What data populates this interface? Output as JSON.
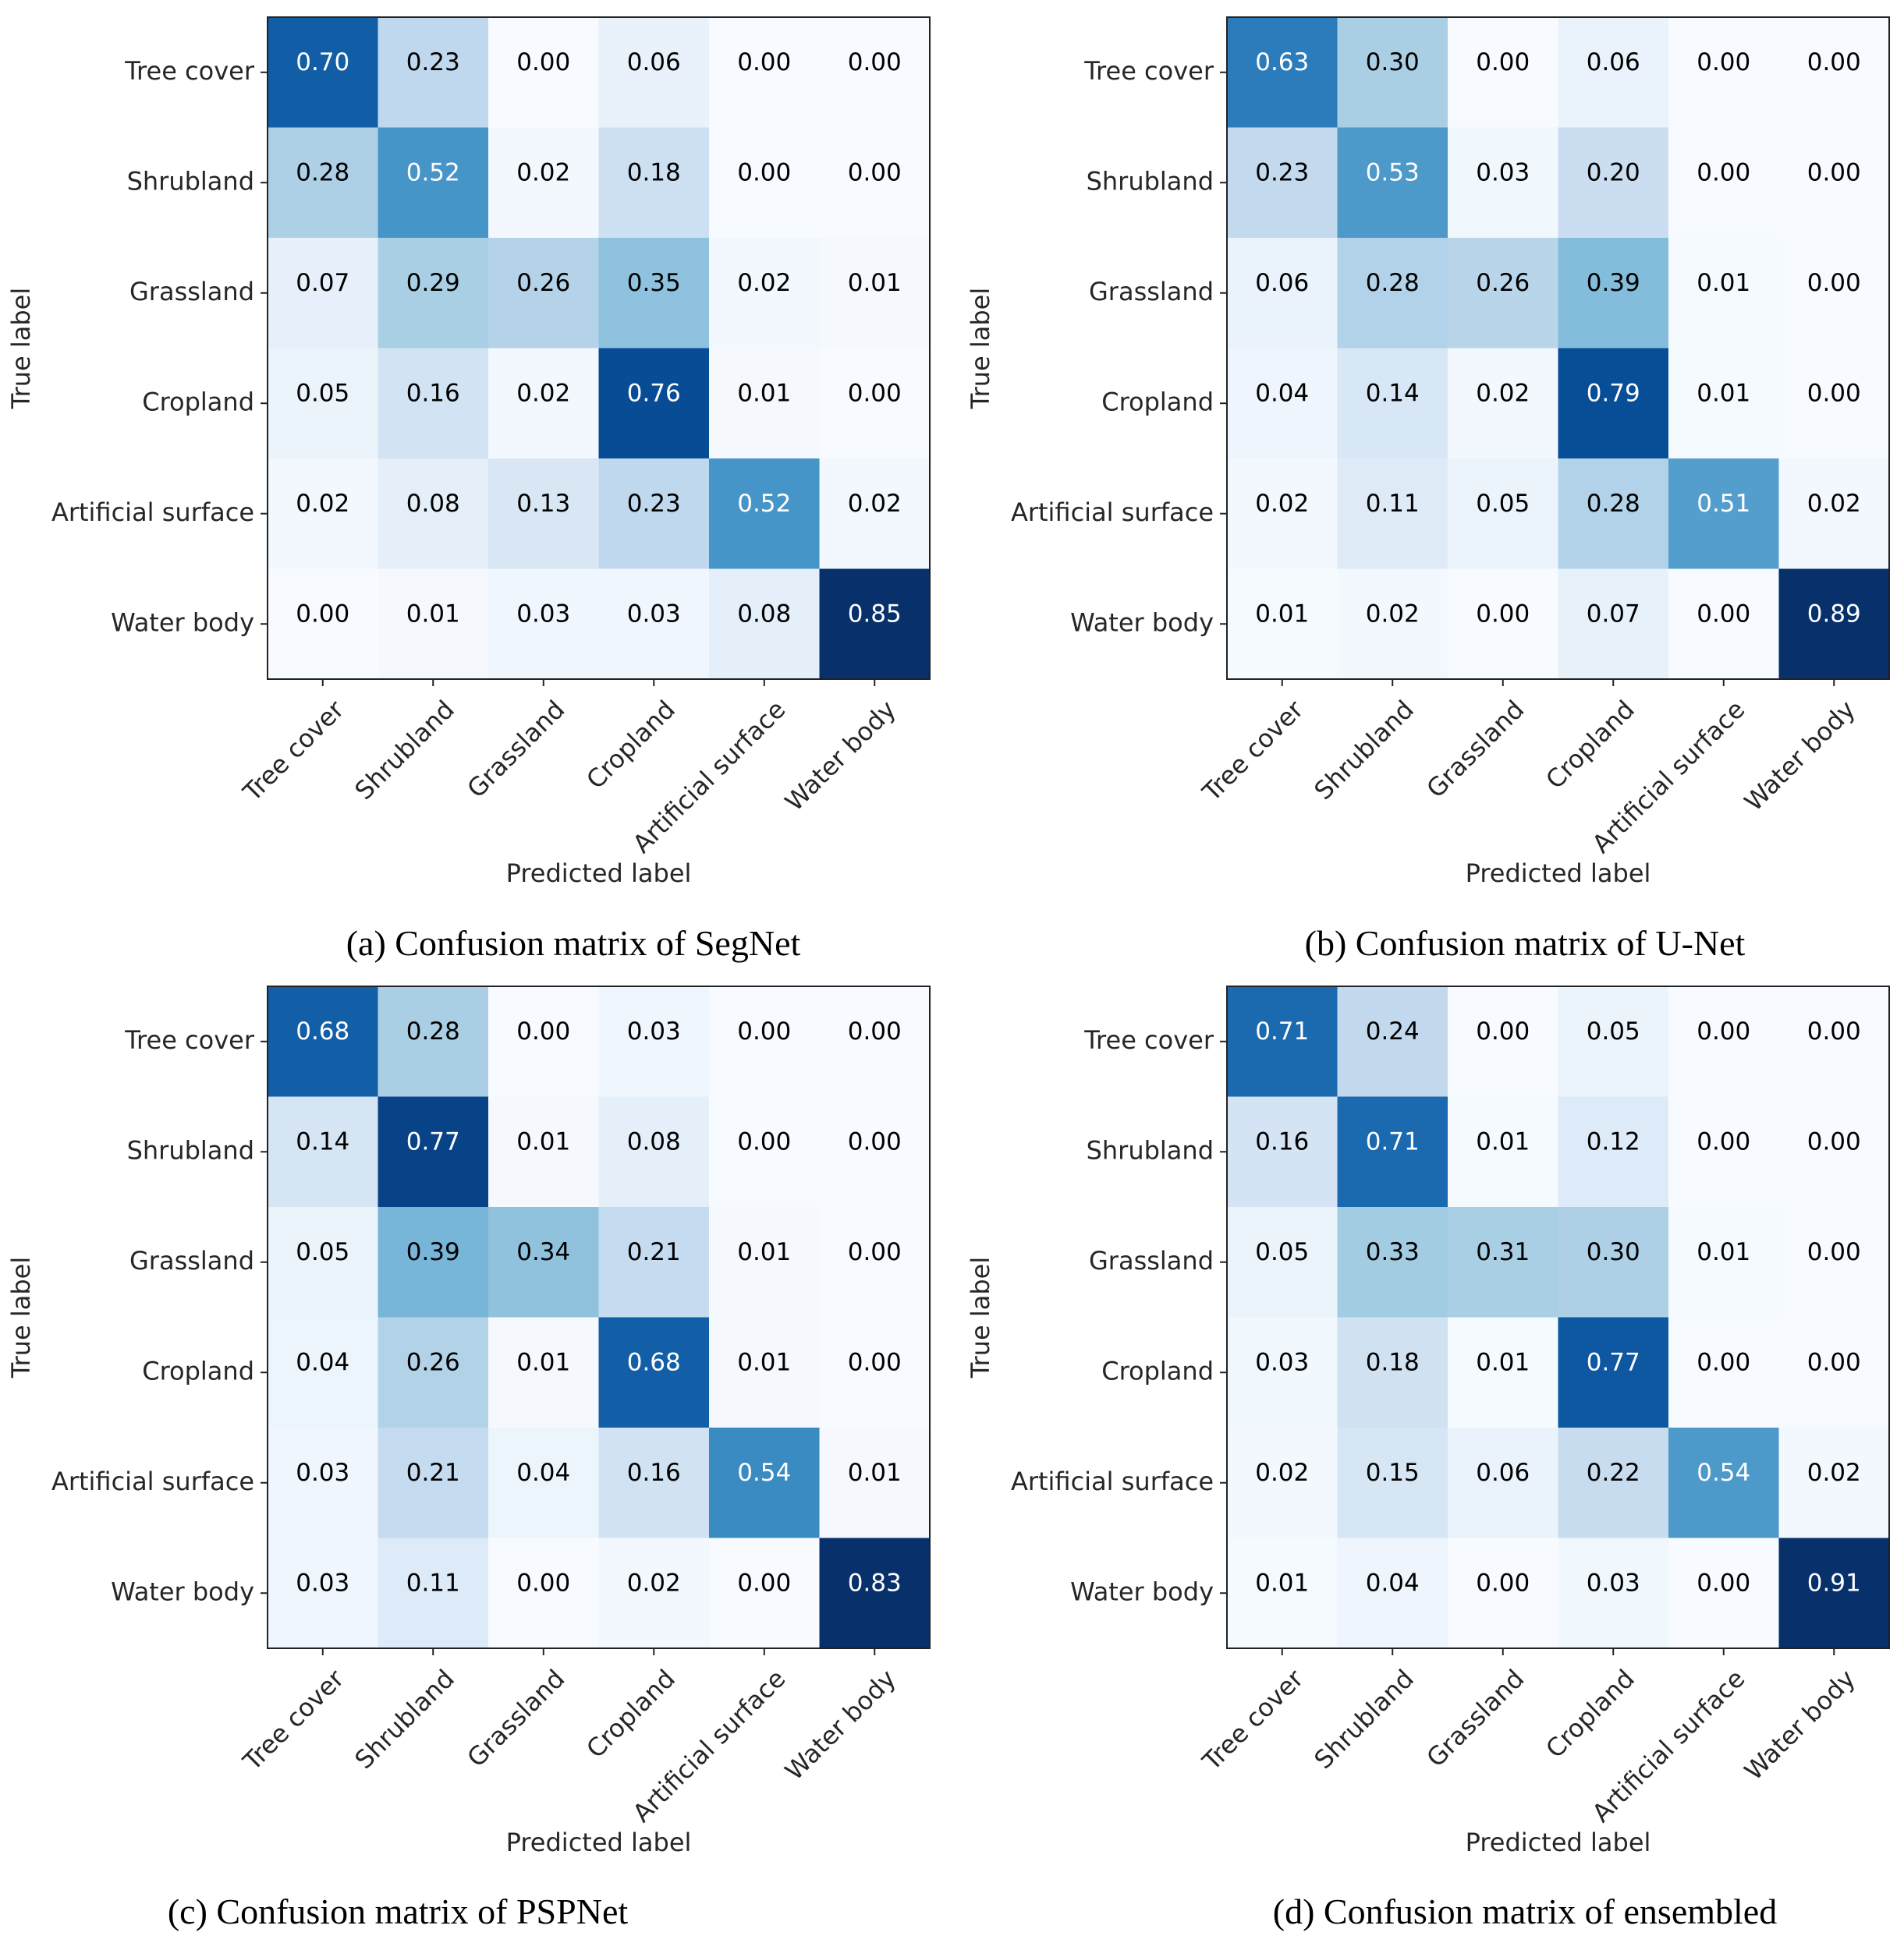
{
  "colors": {
    "low": "#f7fbff",
    "high": "#08306b",
    "frame": "#222222",
    "text_dark": "#000000",
    "text_light": "#ffffff"
  },
  "chart_data": [
    {
      "type": "heatmap",
      "caption": "(a) Confusion matrix of SegNet",
      "xlabel": "Predicted label",
      "ylabel": "True label",
      "categories": [
        "Tree cover",
        "Shrubland",
        "Grassland",
        "Cropland",
        "Artificial surface",
        "Water body"
      ],
      "values": [
        [
          "0.70",
          "0.23",
          "0.00",
          "0.06",
          "0.00",
          "0.00"
        ],
        [
          "0.28",
          "0.52",
          "0.02",
          "0.18",
          "0.00",
          "0.00"
        ],
        [
          "0.07",
          "0.29",
          "0.26",
          "0.35",
          "0.02",
          "0.01"
        ],
        [
          "0.05",
          "0.16",
          "0.02",
          "0.76",
          "0.01",
          "0.00"
        ],
        [
          "0.02",
          "0.08",
          "0.13",
          "0.23",
          "0.52",
          "0.02"
        ],
        [
          "0.00",
          "0.01",
          "0.03",
          "0.03",
          "0.08",
          "0.85"
        ]
      ]
    },
    {
      "type": "heatmap",
      "caption": "(b) Confusion matrix of U-Net",
      "xlabel": "Predicted label",
      "ylabel": "True label",
      "categories": [
        "Tree cover",
        "Shrubland",
        "Grassland",
        "Cropland",
        "Artificial surface",
        "Water body"
      ],
      "values": [
        [
          "0.63",
          "0.30",
          "0.00",
          "0.06",
          "0.00",
          "0.00"
        ],
        [
          "0.23",
          "0.53",
          "0.03",
          "0.20",
          "0.00",
          "0.00"
        ],
        [
          "0.06",
          "0.28",
          "0.26",
          "0.39",
          "0.01",
          "0.00"
        ],
        [
          "0.04",
          "0.14",
          "0.02",
          "0.79",
          "0.01",
          "0.00"
        ],
        [
          "0.02",
          "0.11",
          "0.05",
          "0.28",
          "0.51",
          "0.02"
        ],
        [
          "0.01",
          "0.02",
          "0.00",
          "0.07",
          "0.00",
          "0.89"
        ]
      ]
    },
    {
      "type": "heatmap",
      "caption": "(c) Confusion matrix of PSPNet",
      "xlabel": "Predicted label",
      "ylabel": "True label",
      "categories": [
        "Tree cover",
        "Shrubland",
        "Grassland",
        "Cropland",
        "Artificial surface",
        "Water body"
      ],
      "values": [
        [
          "0.68",
          "0.28",
          "0.00",
          "0.03",
          "0.00",
          "0.00"
        ],
        [
          "0.14",
          "0.77",
          "0.01",
          "0.08",
          "0.00",
          "0.00"
        ],
        [
          "0.05",
          "0.39",
          "0.34",
          "0.21",
          "0.01",
          "0.00"
        ],
        [
          "0.04",
          "0.26",
          "0.01",
          "0.68",
          "0.01",
          "0.00"
        ],
        [
          "0.03",
          "0.21",
          "0.04",
          "0.16",
          "0.54",
          "0.01"
        ],
        [
          "0.03",
          "0.11",
          "0.00",
          "0.02",
          "0.00",
          "0.83"
        ]
      ]
    },
    {
      "type": "heatmap",
      "caption": "(d) Confusion matrix of ensembled",
      "xlabel": "Predicted label",
      "ylabel": "True label",
      "categories": [
        "Tree cover",
        "Shrubland",
        "Grassland",
        "Cropland",
        "Artificial surface",
        "Water body"
      ],
      "values": [
        [
          "0.71",
          "0.24",
          "0.00",
          "0.05",
          "0.00",
          "0.00"
        ],
        [
          "0.16",
          "0.71",
          "0.01",
          "0.12",
          "0.00",
          "0.00"
        ],
        [
          "0.05",
          "0.33",
          "0.31",
          "0.30",
          "0.01",
          "0.00"
        ],
        [
          "0.03",
          "0.18",
          "0.01",
          "0.77",
          "0.00",
          "0.00"
        ],
        [
          "0.02",
          "0.15",
          "0.06",
          "0.22",
          "0.54",
          "0.02"
        ],
        [
          "0.01",
          "0.04",
          "0.00",
          "0.03",
          "0.00",
          "0.91"
        ]
      ]
    }
  ]
}
